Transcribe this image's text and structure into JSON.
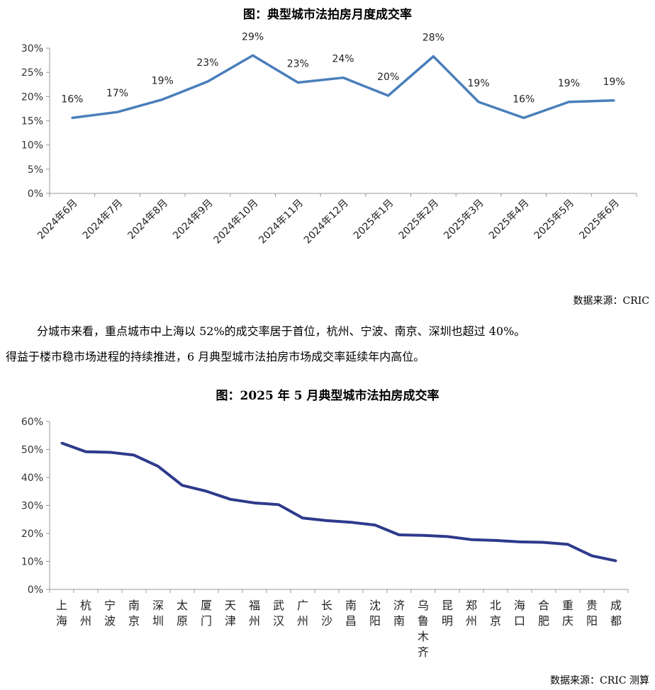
{
  "chart1": {
    "title": "图：典型城市法拍房月度成交率",
    "source": "数据来源：CRIC"
  },
  "paragraph": {
    "line1": "分城市来看，重点城市中上海以 52%的成交率居于首位，杭州、宁波、南京、深圳也超过 40%。",
    "line2": "得益于楼市稳市场进程的持续推进，6 月典型城市法拍房市场成交率延续年内高位。"
  },
  "chart2": {
    "title": "图：2025 年 5 月典型城市法拍房成交率",
    "source": "数据来源：CRIC 测算"
  },
  "colors": {
    "line1": "#4a7ebb",
    "line2": "#2e3a8c",
    "axis": "#999999"
  },
  "chart_data": [
    {
      "type": "line",
      "title": "图：典型城市法拍房月度成交率",
      "categories": [
        "2024年6月",
        "2024年7月",
        "2024年8月",
        "2024年9月",
        "2024年10月",
        "2024年11月",
        "2024年12月",
        "2025年1月",
        "2025年2月",
        "2025年3月",
        "2025年4月",
        "2025年5月",
        "2025年6月"
      ],
      "values": [
        15.6,
        16.8,
        19.4,
        23.1,
        28.5,
        22.9,
        23.9,
        20.2,
        28.3,
        18.9,
        15.6,
        18.9,
        19.2
      ],
      "data_labels": [
        "16%",
        "17%",
        "19%",
        "23%",
        "29%",
        "23%",
        "24%",
        "20%",
        "28%",
        "19%",
        "16%",
        "19%",
        "19%"
      ],
      "yticks": [
        "0%",
        "5%",
        "10%",
        "15%",
        "20%",
        "25%",
        "30%"
      ],
      "ylim": [
        0,
        30
      ],
      "xlabel": "",
      "ylabel": ""
    },
    {
      "type": "line",
      "title": "图：2025 年 5 月典型城市法拍房成交率",
      "categories": [
        "上海",
        "杭州",
        "宁波",
        "南京",
        "深圳",
        "太原",
        "厦门",
        "天津",
        "福州",
        "武汉",
        "广州",
        "长沙",
        "南昌",
        "沈阳",
        "济南",
        "乌鲁木齐",
        "昆明",
        "郑州",
        "北京",
        "海口",
        "合肥",
        "重庆",
        "贵阳",
        "成都"
      ],
      "values": [
        52.3,
        49.2,
        49.0,
        48.0,
        44.0,
        37.2,
        35.1,
        32.2,
        30.9,
        30.3,
        25.5,
        24.6,
        24.0,
        23.0,
        19.5,
        19.3,
        18.9,
        17.8,
        17.5,
        17.0,
        16.8,
        16.1,
        12.0,
        10.2
      ],
      "yticks": [
        "0%",
        "10%",
        "20%",
        "30%",
        "40%",
        "50%",
        "60%"
      ],
      "ylim": [
        0,
        60
      ],
      "xlabel": "",
      "ylabel": ""
    }
  ]
}
